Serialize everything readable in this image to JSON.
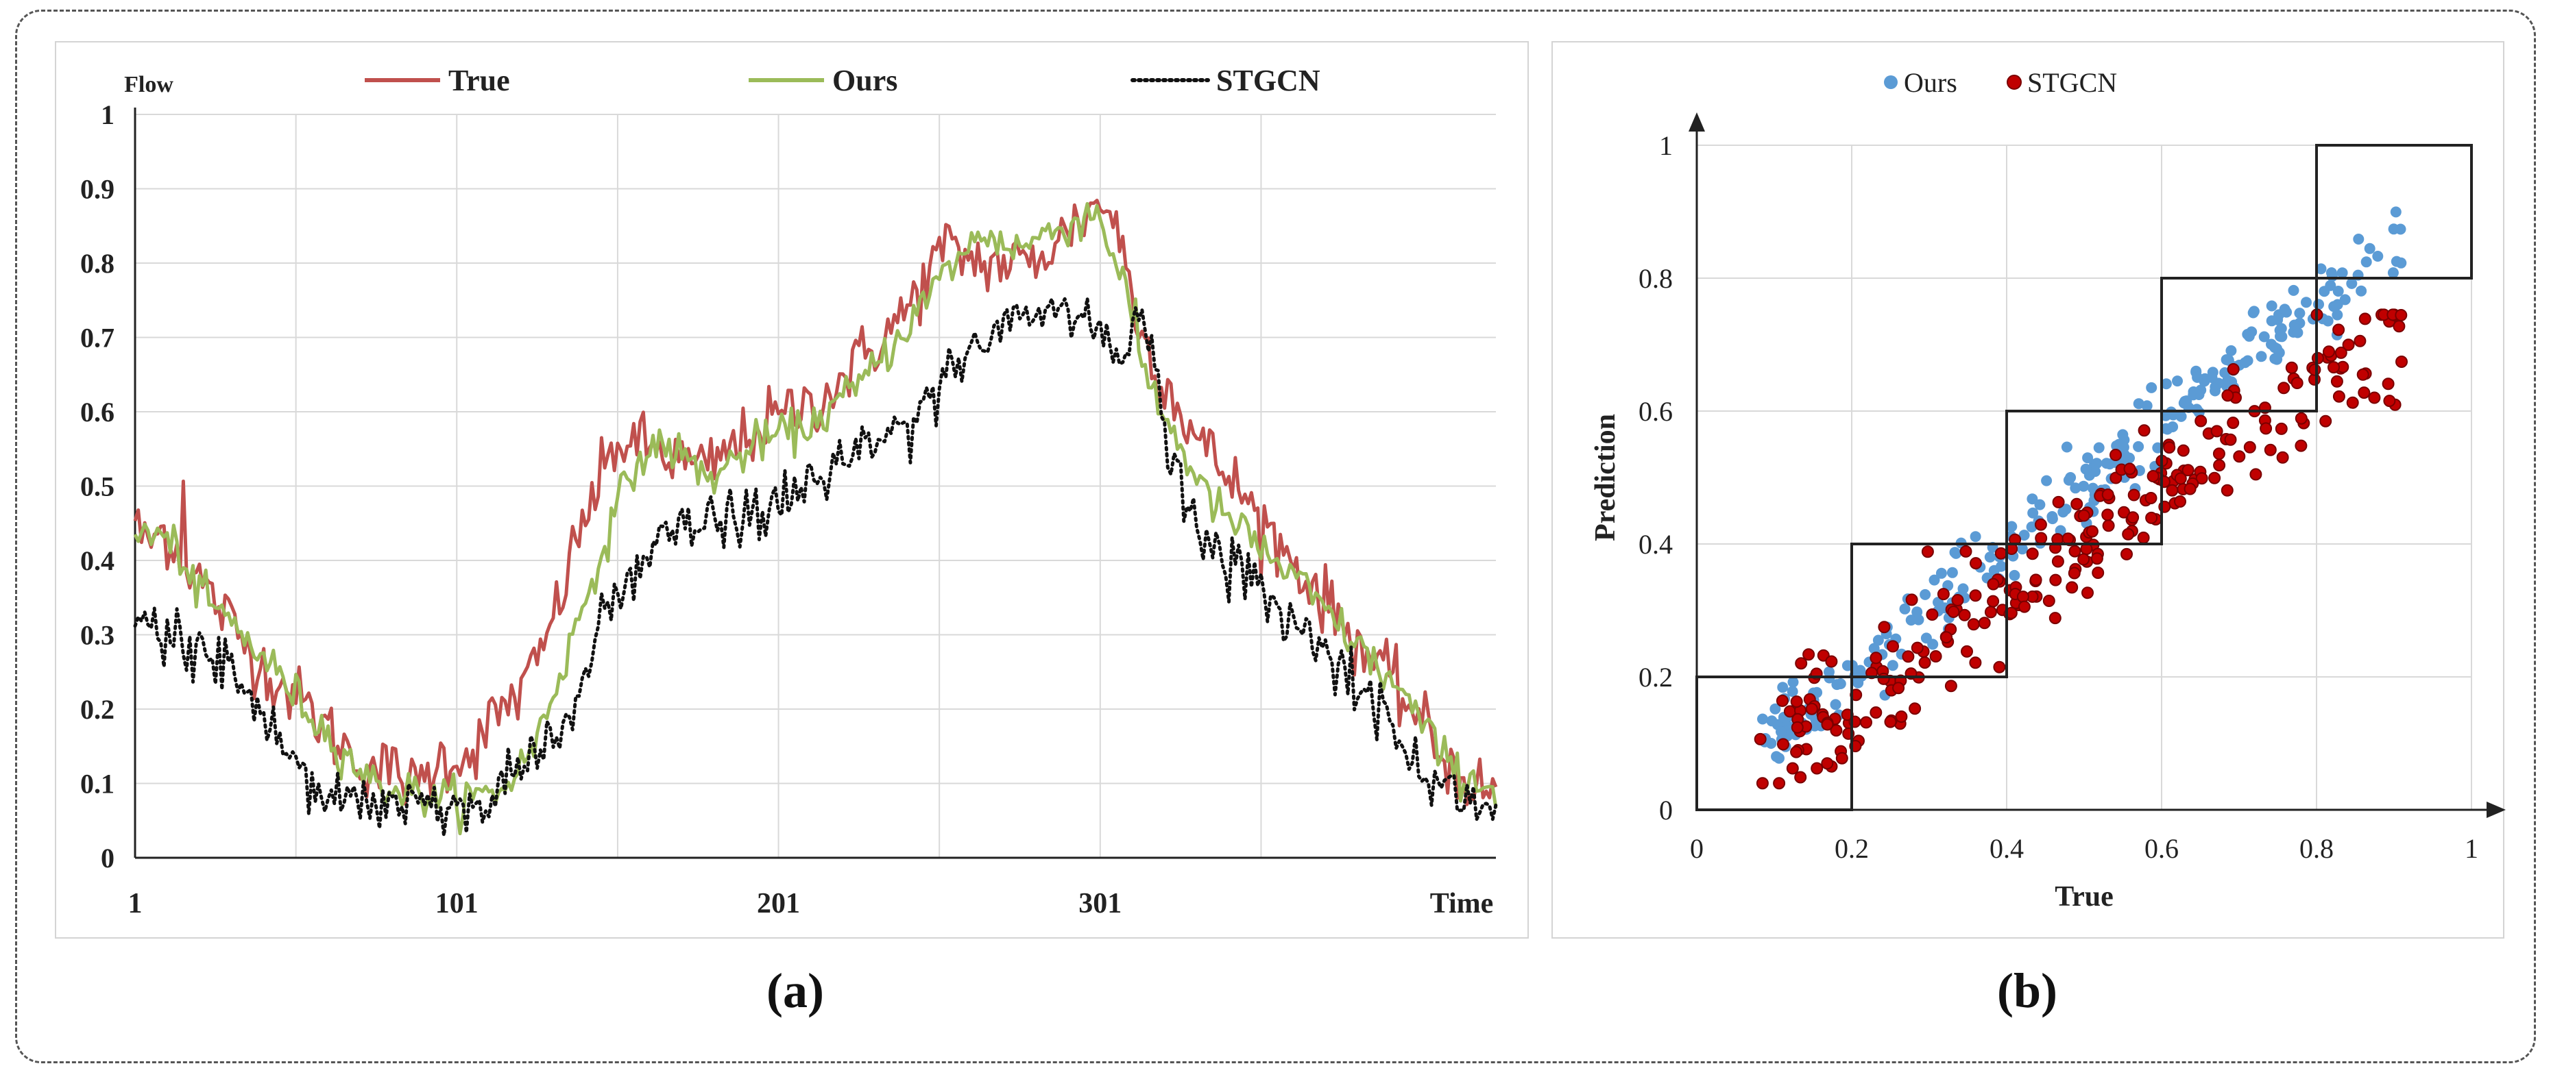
{
  "captions": {
    "a": "(a)",
    "b": "(b)"
  },
  "chart_data": [
    {
      "type": "line",
      "xlabel": "Time",
      "ylabel": "Flow",
      "x_ticks": [
        1,
        101,
        201,
        301
      ],
      "y_ticks": [
        0,
        0.1,
        0.2,
        0.3,
        0.4,
        0.5,
        0.6,
        0.7,
        0.8,
        0.9,
        1
      ],
      "xlim": [
        1,
        361
      ],
      "ylim": [
        0,
        1
      ],
      "grid": true,
      "legend_position": "top",
      "colors": {
        "True": "#c0504d",
        "Ours": "#9bbb59",
        "STGCN": "#111111"
      },
      "series": [
        {
          "name": "True",
          "anchors": [
            [
              1,
              0.46
            ],
            [
              4,
              0.42
            ],
            [
              10,
              0.44
            ],
            [
              15,
              0.41
            ],
            [
              16,
              0.5
            ],
            [
              17,
              0.4
            ],
            [
              25,
              0.35
            ],
            [
              40,
              0.26
            ],
            [
              55,
              0.2
            ],
            [
              70,
              0.13
            ],
            [
              85,
              0.11
            ],
            [
              88,
              0.09
            ],
            [
              95,
              0.13
            ],
            [
              105,
              0.14
            ],
            [
              115,
              0.2
            ],
            [
              120,
              0.22
            ],
            [
              125,
              0.25
            ],
            [
              131,
              0.32
            ],
            [
              140,
              0.45
            ],
            [
              151,
              0.56
            ],
            [
              162,
              0.55
            ],
            [
              178,
              0.52
            ],
            [
              195,
              0.58
            ],
            [
              215,
              0.62
            ],
            [
              240,
              0.73
            ],
            [
              252,
              0.82
            ],
            [
              265,
              0.8
            ],
            [
              280,
              0.8
            ],
            [
              300,
              0.88
            ],
            [
              305,
              0.87
            ],
            [
              314,
              0.7
            ],
            [
              330,
              0.57
            ],
            [
              345,
              0.49
            ],
            [
              355,
              0.43
            ],
            [
              370,
              0.35
            ],
            [
              385,
              0.27
            ],
            [
              398,
              0.2
            ],
            [
              410,
              0.12
            ],
            [
              420,
              0.09
            ],
            [
              424,
              0.08
            ]
          ]
        },
        {
          "name": "Ours",
          "anchors": [
            [
              1,
              0.44
            ],
            [
              10,
              0.43
            ],
            [
              15,
              0.41
            ],
            [
              20,
              0.36
            ],
            [
              30,
              0.32
            ],
            [
              45,
              0.25
            ],
            [
              60,
              0.17
            ],
            [
              75,
              0.1
            ],
            [
              85,
              0.09
            ],
            [
              95,
              0.08
            ],
            [
              105,
              0.08
            ],
            [
              115,
              0.09
            ],
            [
              125,
              0.15
            ],
            [
              135,
              0.27
            ],
            [
              145,
              0.4
            ],
            [
              155,
              0.52
            ],
            [
              165,
              0.56
            ],
            [
              180,
              0.51
            ],
            [
              195,
              0.56
            ],
            [
              210,
              0.58
            ],
            [
              225,
              0.63
            ],
            [
              240,
              0.71
            ],
            [
              255,
              0.8
            ],
            [
              265,
              0.84
            ],
            [
              275,
              0.82
            ],
            [
              290,
              0.85
            ],
            [
              300,
              0.87
            ],
            [
              308,
              0.78
            ],
            [
              315,
              0.65
            ],
            [
              325,
              0.56
            ],
            [
              335,
              0.48
            ],
            [
              350,
              0.42
            ],
            [
              365,
              0.36
            ],
            [
              380,
              0.29
            ],
            [
              395,
              0.22
            ],
            [
              410,
              0.12
            ],
            [
              424,
              0.09
            ]
          ]
        },
        {
          "name": "STGCN",
          "anchors": [
            [
              1,
              0.33
            ],
            [
              10,
              0.3
            ],
            [
              20,
              0.28
            ],
            [
              30,
              0.27
            ],
            [
              40,
              0.19
            ],
            [
              50,
              0.14
            ],
            [
              55,
              0.11
            ],
            [
              60,
              0.09
            ],
            [
              70,
              0.08
            ],
            [
              80,
              0.08
            ],
            [
              95,
              0.08
            ],
            [
              105,
              0.07
            ],
            [
              110,
              0.06
            ],
            [
              115,
              0.09
            ],
            [
              125,
              0.14
            ],
            [
              135,
              0.18
            ],
            [
              145,
              0.3
            ],
            [
              155,
              0.37
            ],
            [
              165,
              0.43
            ],
            [
              180,
              0.45
            ],
            [
              195,
              0.46
            ],
            [
              210,
              0.5
            ],
            [
              225,
              0.54
            ],
            [
              240,
              0.58
            ],
            [
              255,
              0.66
            ],
            [
              265,
              0.7
            ],
            [
              275,
              0.73
            ],
            [
              285,
              0.74
            ],
            [
              300,
              0.72
            ],
            [
              308,
              0.67
            ],
            [
              312,
              0.73
            ],
            [
              318,
              0.68
            ],
            [
              322,
              0.55
            ],
            [
              330,
              0.45
            ],
            [
              340,
              0.4
            ],
            [
              355,
              0.35
            ],
            [
              370,
              0.28
            ],
            [
              385,
              0.22
            ],
            [
              395,
              0.15
            ],
            [
              405,
              0.1
            ],
            [
              415,
              0.08
            ],
            [
              424,
              0.07
            ]
          ]
        }
      ]
    },
    {
      "type": "scatter",
      "xlabel": "True",
      "ylabel": "Prediction",
      "x_ticks": [
        0,
        0.2,
        0.4,
        0.6,
        0.8,
        1
      ],
      "y_ticks": [
        0,
        0.2,
        0.4,
        0.6,
        0.8,
        1
      ],
      "xlim": [
        0,
        1
      ],
      "ylim": [
        0,
        1
      ],
      "grid": true,
      "legend_position": "top",
      "colors": {
        "Ours": "#5b9bd5",
        "STGCN": "#c00000"
      },
      "series": [
        {
          "name": "Ours",
          "trend": {
            "from": [
              0.08,
              0.09
            ],
            "to": [
              0.91,
              0.87
            ],
            "spread": 0.03
          },
          "count": 260
        },
        {
          "name": "STGCN",
          "trend": {
            "from": [
              0.08,
              0.07
            ],
            "to": [
              0.91,
              0.73
            ],
            "spread": 0.05
          },
          "count": 260
        }
      ],
      "boxes": [
        [
          0,
          0.2,
          0,
          0.2
        ],
        [
          0.2,
          0.4,
          0.2,
          0.4
        ],
        [
          0.4,
          0.6,
          0.4,
          0.6
        ],
        [
          0.6,
          0.8,
          0.6,
          0.8
        ],
        [
          0.8,
          1,
          0.8,
          1
        ]
      ]
    }
  ]
}
